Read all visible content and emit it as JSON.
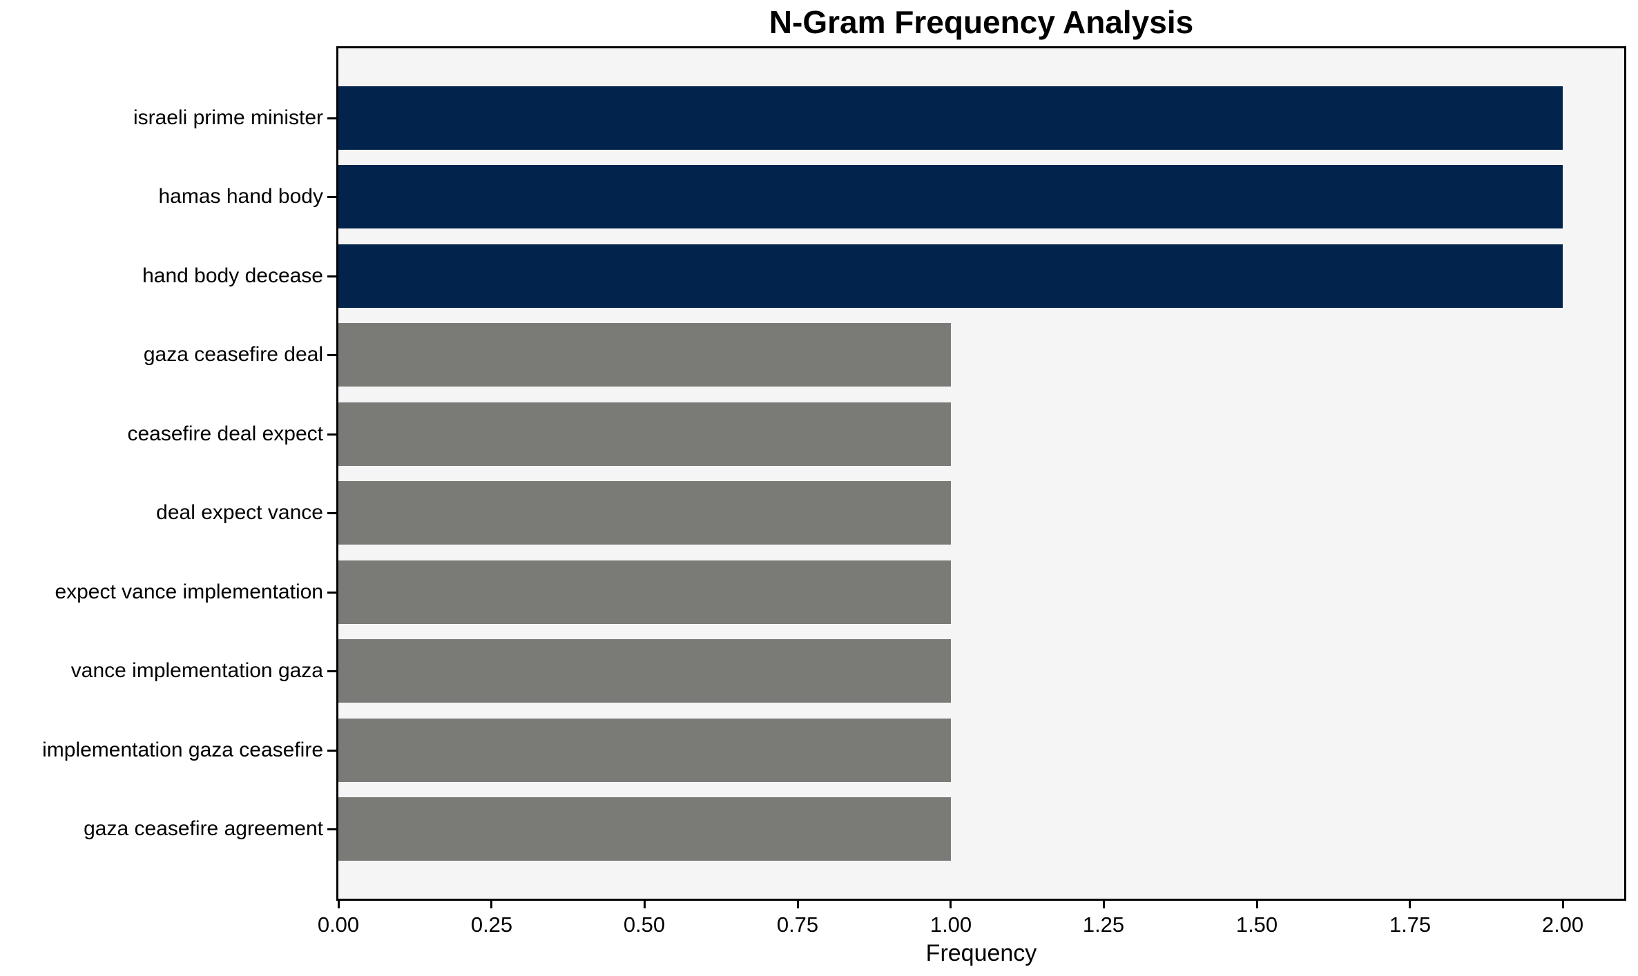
{
  "chart_data": {
    "type": "bar",
    "orientation": "horizontal",
    "title": "N-Gram Frequency Analysis",
    "xlabel": "Frequency",
    "ylabel": "",
    "categories": [
      "israeli prime minister",
      "hamas hand body",
      "hand body decease",
      "gaza ceasefire deal",
      "ceasefire deal expect",
      "deal expect vance",
      "expect vance implementation",
      "vance implementation gaza",
      "implementation gaza ceasefire",
      "gaza ceasefire agreement"
    ],
    "values": [
      2,
      2,
      2,
      1,
      1,
      1,
      1,
      1,
      1,
      1
    ],
    "bar_colors": [
      "#02244c",
      "#02244c",
      "#02244c",
      "#7a7a77",
      "#7a7a77",
      "#7a7a77",
      "#7a7a77",
      "#7a7a77",
      "#7a7a77",
      "#7a7a77"
    ],
    "xlim": [
      0,
      2.1
    ],
    "xtick_values": [
      0,
      0.25,
      0.5,
      0.75,
      1.0,
      1.25,
      1.5,
      1.75,
      2.0
    ],
    "xtick_labels": [
      "0.00",
      "0.25",
      "0.50",
      "0.75",
      "1.00",
      "1.25",
      "1.50",
      "1.75",
      "2.00"
    ],
    "grid": false,
    "legend_visible": false,
    "plot_background": "#f5f5f5",
    "figure_background": "#ffffff",
    "axis_color": "#000000"
  }
}
